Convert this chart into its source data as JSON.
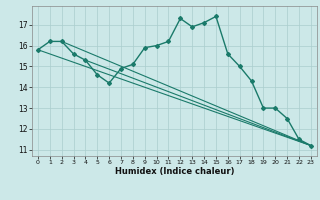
{
  "line1_x": [
    0,
    1,
    2,
    3,
    4,
    5,
    6,
    7,
    8,
    9,
    10,
    11,
    12,
    13,
    14,
    15,
    16,
    17,
    18,
    19,
    20,
    21,
    22,
    23
  ],
  "line1_y": [
    15.8,
    16.2,
    16.2,
    15.6,
    15.3,
    14.6,
    14.2,
    14.9,
    15.1,
    15.9,
    16.0,
    16.2,
    17.3,
    16.9,
    17.1,
    17.4,
    15.6,
    15.0,
    14.3,
    13.0,
    13.0,
    12.5,
    11.5,
    11.2
  ],
  "trend1_x": [
    0,
    23
  ],
  "trend1_y": [
    15.8,
    11.2
  ],
  "trend2_x": [
    2,
    23
  ],
  "trend2_y": [
    16.2,
    11.2
  ],
  "trend3_x": [
    4,
    23
  ],
  "trend3_y": [
    15.3,
    11.2
  ],
  "color": "#1a7a6a",
  "bg_color": "#cce8e8",
  "grid_color": "#aacece",
  "xlabel": "Humidex (Indice chaleur)",
  "xlim": [
    -0.5,
    23.5
  ],
  "ylim": [
    10.7,
    17.9
  ],
  "yticks": [
    11,
    12,
    13,
    14,
    15,
    16,
    17
  ],
  "xticks": [
    0,
    1,
    2,
    3,
    4,
    5,
    6,
    7,
    8,
    9,
    10,
    11,
    12,
    13,
    14,
    15,
    16,
    17,
    18,
    19,
    20,
    21,
    22,
    23
  ]
}
